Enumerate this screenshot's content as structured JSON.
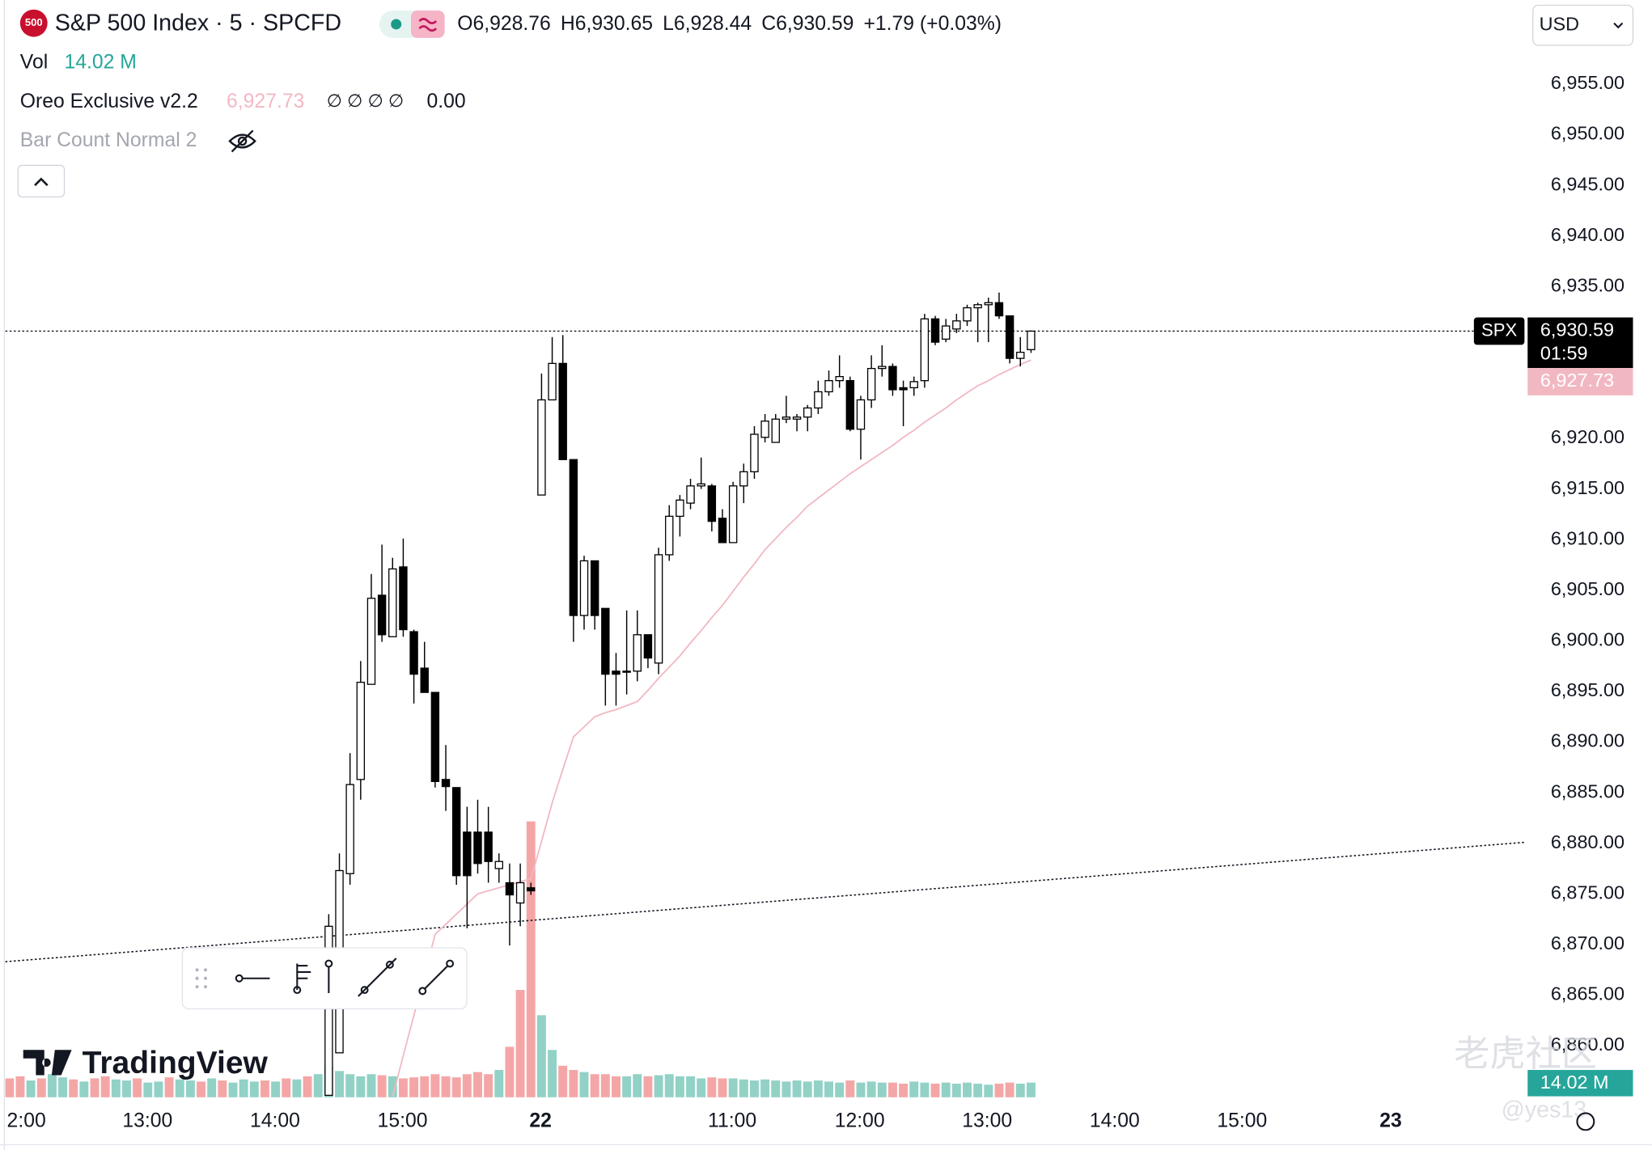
{
  "header": {
    "badge": "500",
    "symbol": "S&P 500 Index · 5 · SPCFD",
    "ohlc": [
      {
        "key": "O",
        "value": "6,928.76"
      },
      {
        "key": "H",
        "value": "6,930.65"
      },
      {
        "key": "L",
        "value": "6,928.44"
      },
      {
        "key": "C",
        "value": "6,930.59"
      }
    ],
    "change": "+1.79 (+0.03%)"
  },
  "indicators": {
    "vol": {
      "name": "Vol",
      "value": "14.02 M"
    },
    "oreo": {
      "name": "Oreo Exclusive v2.2",
      "value": "6,927.73",
      "extras": "∅ ∅ ∅ ∅",
      "extra_value": "0.00"
    },
    "bar_count": {
      "name": "Bar Count Normal 2"
    }
  },
  "currency": "USD",
  "logo": "TradingView",
  "watermark": [
    "老虎社区",
    "@yes13"
  ],
  "chart_data": {
    "type": "candlestick",
    "open": [
      null,
      null,
      null,
      null,
      null,
      null,
      null,
      null,
      null,
      null,
      null,
      null,
      null,
      null,
      null,
      null,
      null,
      null,
      null,
      null,
      null,
      null,
      null,
      null,
      null,
      null,
      null,
      null,
      null,
      null,
      6855.1,
      6859.3,
      6877.0,
      6886.3,
      6895.7,
      6904.5,
      6900.4,
      6907.3,
      6900.9,
      6897.3,
      6894.9,
      6886.3,
      6885.5,
      6881.1,
      6881.1,
      6881.1,
      6877.5,
      6876.1,
      6874.1,
      6875.6,
      6914.4,
      6923.8,
      6927.4,
      6917.9,
      6902.5,
      6907.9,
      6903.2,
      6897.0,
      6896.9,
      6897.0,
      6900.6,
      6897.8,
      6908.5,
      6912.3,
      6913.6,
      6915.3,
      6915.3,
      6912.1,
      6909.7,
      6915.3,
      6916.7,
      6920.1,
      6919.6,
      6921.9,
      6921.9,
      6922.1,
      6923.0,
      6924.6,
      6925.7,
      6925.7,
      6920.9,
      6923.8,
      6926.9,
      6927.1,
      6925.0,
      6925.0,
      6925.7,
      6931.8,
      6929.8,
      6930.8,
      6931.6,
      6932.9,
      6933.2,
      6933.4,
      6932.1,
      6927.9,
      6928.76
    ],
    "high": [
      null,
      null,
      null,
      null,
      null,
      null,
      null,
      null,
      null,
      null,
      null,
      null,
      null,
      null,
      null,
      null,
      null,
      null,
      null,
      null,
      null,
      null,
      null,
      null,
      null,
      null,
      null,
      null,
      null,
      null,
      6873.0,
      6879.0,
      6888.9,
      6898.0,
      6906.6,
      6909.5,
      6908.2,
      6910.1,
      6901.1,
      6899.9,
      6894.9,
      6889.7,
      6885.5,
      6883.6,
      6884.3,
      6883.6,
      6879.0,
      6878.0,
      6878.0,
      6876.1,
      6926.4,
      6930.0,
      6930.2,
      6917.9,
      6908.4,
      6907.9,
      6903.2,
      6898.8,
      6903.0,
      6903.0,
      6900.6,
      6909.2,
      6913.4,
      6914.4,
      6916.0,
      6918.1,
      6915.5,
      6913.0,
      6915.7,
      6917.5,
      6921.2,
      6922.4,
      6922.4,
      6924.2,
      6922.4,
      6923.3,
      6925.7,
      6926.7,
      6928.2,
      6926.1,
      6924.2,
      6928.2,
      6929.2,
      6927.4,
      6925.7,
      6926.1,
      6932.3,
      6932.1,
      6931.8,
      6932.3,
      6933.2,
      6933.4,
      6933.9,
      6934.4,
      6932.1,
      6930.0,
      6930.65
    ],
    "low": [
      null,
      null,
      null,
      null,
      null,
      null,
      null,
      null,
      null,
      null,
      null,
      null,
      null,
      null,
      null,
      null,
      null,
      null,
      null,
      null,
      null,
      null,
      null,
      null,
      null,
      null,
      null,
      null,
      null,
      null,
      6855.1,
      6859.3,
      6875.9,
      6884.3,
      6895.7,
      6899.9,
      6900.4,
      6900.4,
      6893.8,
      6894.9,
      6885.5,
      6883.2,
      6875.9,
      6871.6,
      6877.0,
      6876.1,
      6876.1,
      6869.9,
      6871.8,
      6874.9,
      6914.4,
      6923.8,
      6917.9,
      6899.9,
      6901.1,
      6901.1,
      6893.6,
      6893.6,
      6894.7,
      6896.0,
      6897.3,
      6896.7,
      6907.9,
      6910.3,
      6913.0,
      6915.0,
      6910.8,
      6909.7,
      6909.7,
      6913.6,
      6916.0,
      6919.6,
      6919.6,
      6921.5,
      6920.7,
      6920.7,
      6922.4,
      6924.2,
      6925.0,
      6920.7,
      6917.9,
      6923.0,
      6926.1,
      6924.2,
      6921.2,
      6924.2,
      6925.0,
      6929.2,
      6929.5,
      6930.4,
      6931.1,
      6929.5,
      6929.5,
      6931.8,
      6927.4,
      6927.1,
      6928.44
    ],
    "close": [
      null,
      null,
      null,
      null,
      null,
      null,
      null,
      null,
      null,
      null,
      null,
      null,
      null,
      null,
      null,
      null,
      null,
      null,
      null,
      null,
      null,
      null,
      null,
      null,
      null,
      null,
      null,
      null,
      null,
      null,
      6871.8,
      6877.3,
      6885.8,
      6895.9,
      6904.2,
      6900.6,
      6907.1,
      6901.1,
      6896.7,
      6894.9,
      6886.1,
      6885.6,
      6876.8,
      6876.8,
      6878.0,
      6878.2,
      6878.2,
      6874.9,
      6876.1,
      6875.3,
      6923.8,
      6927.4,
      6917.9,
      6902.5,
      6907.9,
      6902.5,
      6896.7,
      6896.7,
      6897.0,
      6900.6,
      6898.3,
      6908.5,
      6912.3,
      6913.9,
      6915.3,
      6915.5,
      6911.8,
      6909.7,
      6915.3,
      6916.7,
      6920.4,
      6921.7,
      6921.9,
      6922.1,
      6922.1,
      6923.0,
      6924.6,
      6925.7,
      6926.1,
      6920.9,
      6923.8,
      6926.9,
      6927.1,
      6924.8,
      6924.8,
      6925.6,
      6931.8,
      6929.5,
      6931.1,
      6931.6,
      6932.9,
      6933.2,
      6933.4,
      6932.1,
      6927.9,
      6928.5,
      6930.59
    ],
    "up_color": "#ffffff",
    "down_color": "#000000",
    "volume": {
      "values": [
        18,
        20,
        16,
        18,
        22,
        19,
        17,
        15,
        18,
        20,
        17,
        16,
        18,
        14,
        15,
        19,
        17,
        16,
        15,
        18,
        16,
        14,
        17,
        15,
        16,
        15,
        18,
        17,
        20,
        22,
        30,
        25,
        22,
        20,
        22,
        21,
        20,
        18,
        19,
        20,
        22,
        20,
        19,
        22,
        24,
        22,
        26,
        48,
        102,
        262,
        78,
        45,
        30,
        26,
        24,
        22,
        22,
        20,
        20,
        22,
        20,
        21,
        22,
        20,
        20,
        18,
        19,
        18,
        18,
        17,
        16,
        17,
        16,
        15,
        16,
        15,
        16,
        15,
        14,
        16,
        14,
        15,
        14,
        14,
        13,
        15,
        14,
        13,
        14,
        13,
        14,
        13,
        12,
        13,
        14,
        13,
        14.02
      ],
      "colors": [
        "#f4a6a6",
        "#f4a6a6",
        "#92d1c6",
        "#f4a6a6",
        "#92d1c6",
        "#92d1c6",
        "#f4a6a6",
        "#92d1c6",
        "#f4a6a6",
        "#f4a6a6",
        "#92d1c6",
        "#92d1c6",
        "#f4a6a6",
        "#92d1c6",
        "#92d1c6",
        "#f4a6a6",
        "#92d1c6",
        "#92d1c6",
        "#f4a6a6",
        "#92d1c6",
        "#f4a6a6",
        "#92d1c6",
        "#92d1c6",
        "#92d1c6",
        "#f4a6a6",
        "#92d1c6",
        "#f4a6a6",
        "#92d1c6",
        "#f4a6a6",
        "#92d1c6",
        "#92d1c6",
        "#92d1c6",
        "#92d1c6",
        "#92d1c6",
        "#92d1c6",
        "#f4a6a6",
        "#92d1c6",
        "#f4a6a6",
        "#f4a6a6",
        "#f4a6a6",
        "#f4a6a6",
        "#f4a6a6",
        "#f4a6a6",
        "#f4a6a6",
        "#f4a6a6",
        "#f4a6a6",
        "#92d1c6",
        "#f4a6a6",
        "#f4a6a6",
        "#f4a6a6",
        "#92d1c6",
        "#92d1c6",
        "#f4a6a6",
        "#f4a6a6",
        "#92d1c6",
        "#f4a6a6",
        "#f4a6a6",
        "#f4a6a6",
        "#92d1c6",
        "#92d1c6",
        "#f4a6a6",
        "#92d1c6",
        "#92d1c6",
        "#92d1c6",
        "#92d1c6",
        "#92d1c6",
        "#f4a6a6",
        "#f4a6a6",
        "#92d1c6",
        "#92d1c6",
        "#92d1c6",
        "#92d1c6",
        "#92d1c6",
        "#92d1c6",
        "#92d1c6",
        "#92d1c6",
        "#92d1c6",
        "#92d1c6",
        "#92d1c6",
        "#f4a6a6",
        "#92d1c6",
        "#92d1c6",
        "#92d1c6",
        "#f4a6a6",
        "#f4a6a6",
        "#92d1c6",
        "#92d1c6",
        "#f4a6a6",
        "#92d1c6",
        "#92d1c6",
        "#92d1c6",
        "#92d1c6",
        "#92d1c6",
        "#f4a6a6",
        "#f4a6a6",
        "#92d1c6",
        "#92d1c6"
      ],
      "label": "14.02 M"
    },
    "ma": {
      "color": "#f2b8c2",
      "label": "6,927.73",
      "values": [
        null,
        null,
        null,
        null,
        null,
        null,
        null,
        null,
        null,
        null,
        null,
        null,
        null,
        null,
        null,
        null,
        null,
        null,
        null,
        null,
        null,
        null,
        null,
        null,
        null,
        null,
        null,
        null,
        null,
        null,
        null,
        null,
        null,
        null,
        null,
        null,
        6855,
        6859,
        6863,
        6867,
        6871,
        6872,
        6873,
        6874,
        6875,
        6875.3,
        6875.6,
        6875.9,
        6876.2,
        6876.5,
        6880.2,
        6884,
        6887.3,
        6890.5,
        6891.5,
        6892.5,
        6892.9,
        6893.2,
        6893.6,
        6894,
        6895.1,
        6896.3,
        6897.4,
        6898.5,
        6899.8,
        6901,
        6902.3,
        6903.5,
        6904.9,
        6906.3,
        6907.6,
        6909,
        6910.1,
        6911.2,
        6912.2,
        6913.3,
        6914.1,
        6914.9,
        6915.7,
        6916.5,
        6917.2,
        6917.9,
        6918.6,
        6919.3,
        6920.1,
        6920.8,
        6921.6,
        6922.3,
        6923,
        6923.8,
        6924.5,
        6925.2,
        6925.7,
        6926.3,
        6926.8,
        6927.3,
        6927.73
      ]
    },
    "trendline": [
      6868.3,
      6880.1
    ],
    "last_price": {
      "symbol": "SPX",
      "value": 6930.59,
      "label": "6,930.59",
      "countdown": "01:59"
    },
    "ylim": [
      6854.9,
      6963.3
    ],
    "yticks": [
      {
        "value": 6860,
        "label": "6,860.00"
      },
      {
        "value": 6865,
        "label": "6,865.00"
      },
      {
        "value": 6870,
        "label": "6,870.00"
      },
      {
        "value": 6875,
        "label": "6,875.00"
      },
      {
        "value": 6880,
        "label": "6,880.00"
      },
      {
        "value": 6885,
        "label": "6,885.00"
      },
      {
        "value": 6890,
        "label": "6,890.00"
      },
      {
        "value": 6895,
        "label": "6,895.00"
      },
      {
        "value": 6900,
        "label": "6,900.00"
      },
      {
        "value": 6905,
        "label": "6,905.00"
      },
      {
        "value": 6910,
        "label": "6,910.00"
      },
      {
        "value": 6915,
        "label": "6,915.00"
      },
      {
        "value": 6920,
        "label": "6,920.00"
      },
      {
        "value": 6935,
        "label": "6,935.00"
      },
      {
        "value": 6940,
        "label": "6,940.00"
      },
      {
        "value": 6945,
        "label": "6,945.00"
      },
      {
        "value": 6950,
        "label": "6,950.00"
      },
      {
        "value": 6955,
        "label": "6,955.00"
      }
    ],
    "xtick_labels": [
      "2:00",
      "13:00",
      "14:00",
      "15:00",
      "22",
      "11:00",
      "12:00",
      "13:00",
      "14:00",
      "15:00",
      "23"
    ],
    "grid": false
  }
}
